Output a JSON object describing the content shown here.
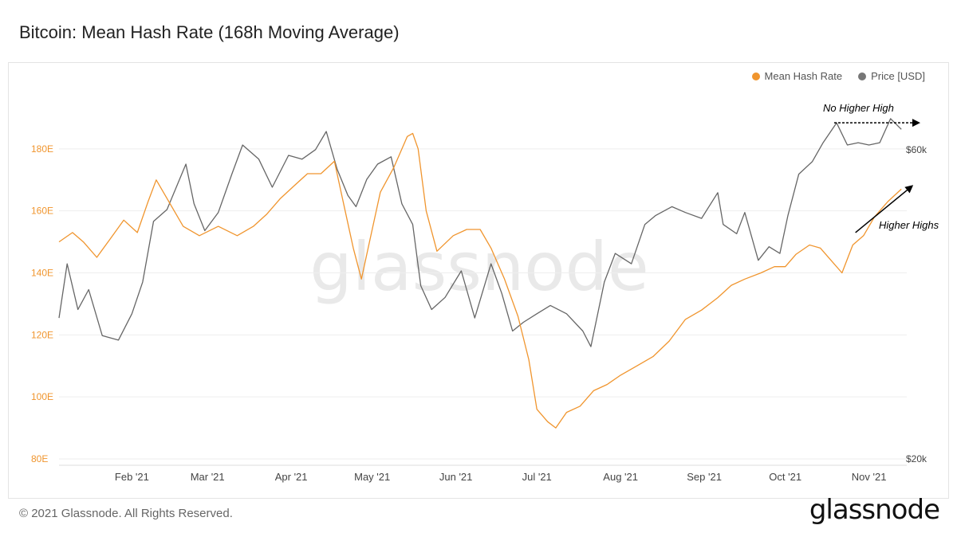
{
  "header": {
    "title": "Bitcoin: Mean Hash Rate (168h Moving Average)"
  },
  "legend": {
    "items": [
      {
        "label": "Mean Hash Rate",
        "color": "#f0952e"
      },
      {
        "label": "Price [USD]",
        "color": "#777777"
      }
    ]
  },
  "watermark": "glassnode",
  "footer": {
    "copyright": "© 2021 Glassnode. All Rights Reserved.",
    "brand": "glassnode"
  },
  "chart_data": {
    "type": "line",
    "title": "Bitcoin: Mean Hash Rate (168h Moving Average)",
    "x_tick_labels": [
      "Feb '21",
      "Mar '21",
      "Apr '21",
      "May '21",
      "Jun '21",
      "Jul '21",
      "Aug '21",
      "Sep '21",
      "Oct '21",
      "Nov '21"
    ],
    "y_left": {
      "ticks": [
        "80E",
        "100E",
        "120E",
        "140E",
        "160E",
        "180E"
      ],
      "range": [
        80,
        200
      ],
      "color": "#f0952e"
    },
    "y_right": {
      "ticks": [
        "$20k",
        "$60k"
      ],
      "scale": "log",
      "range_usd": [
        20000,
        75000
      ]
    },
    "grid": "horizontal",
    "legend_position": "top-right",
    "annotations": [
      {
        "text": "No Higher High",
        "target_series": "Price [USD]",
        "date": "2021-10-20",
        "arrow": "flat"
      },
      {
        "text": "Higher Highs",
        "target_series": "Mean Hash Rate",
        "date": "2021-10-27",
        "arrow": "rising"
      }
    ],
    "series": [
      {
        "name": "Mean Hash Rate",
        "color": "#f0952e",
        "axis": "left",
        "unit": "EH/s",
        "points": [
          [
            "2021-01-05",
            150
          ],
          [
            "2021-01-10",
            153
          ],
          [
            "2021-01-14",
            150
          ],
          [
            "2021-01-19",
            145
          ],
          [
            "2021-01-24",
            151
          ],
          [
            "2021-01-29",
            157
          ],
          [
            "2021-02-03",
            153
          ],
          [
            "2021-02-07",
            163
          ],
          [
            "2021-02-10",
            170
          ],
          [
            "2021-02-14",
            164
          ],
          [
            "2021-02-20",
            155
          ],
          [
            "2021-02-26",
            152
          ],
          [
            "2021-03-05",
            155
          ],
          [
            "2021-03-12",
            152
          ],
          [
            "2021-03-18",
            155
          ],
          [
            "2021-03-23",
            159
          ],
          [
            "2021-03-28",
            164
          ],
          [
            "2021-04-02",
            168
          ],
          [
            "2021-04-07",
            172
          ],
          [
            "2021-04-12",
            172
          ],
          [
            "2021-04-17",
            176
          ],
          [
            "2021-04-21",
            160
          ],
          [
            "2021-04-24",
            148
          ],
          [
            "2021-04-27",
            138
          ],
          [
            "2021-04-30",
            150
          ],
          [
            "2021-05-04",
            166
          ],
          [
            "2021-05-09",
            174
          ],
          [
            "2021-05-14",
            184
          ],
          [
            "2021-05-16",
            185
          ],
          [
            "2021-05-18",
            180
          ],
          [
            "2021-05-21",
            160
          ],
          [
            "2021-05-25",
            147
          ],
          [
            "2021-05-31",
            152
          ],
          [
            "2021-06-05",
            154
          ],
          [
            "2021-06-10",
            154
          ],
          [
            "2021-06-14",
            148
          ],
          [
            "2021-06-19",
            138
          ],
          [
            "2021-06-24",
            126
          ],
          [
            "2021-06-28",
            112
          ],
          [
            "2021-07-01",
            96
          ],
          [
            "2021-07-05",
            92
          ],
          [
            "2021-07-08",
            90
          ],
          [
            "2021-07-12",
            95
          ],
          [
            "2021-07-17",
            97
          ],
          [
            "2021-07-22",
            102
          ],
          [
            "2021-07-27",
            104
          ],
          [
            "2021-08-01",
            107
          ],
          [
            "2021-08-07",
            110
          ],
          [
            "2021-08-13",
            113
          ],
          [
            "2021-08-19",
            118
          ],
          [
            "2021-08-25",
            125
          ],
          [
            "2021-08-31",
            128
          ],
          [
            "2021-09-06",
            132
          ],
          [
            "2021-09-11",
            136
          ],
          [
            "2021-09-16",
            138
          ],
          [
            "2021-09-22",
            140
          ],
          [
            "2021-09-27",
            142
          ],
          [
            "2021-10-01",
            142
          ],
          [
            "2021-10-05",
            146
          ],
          [
            "2021-10-10",
            149
          ],
          [
            "2021-10-14",
            148
          ],
          [
            "2021-10-18",
            144
          ],
          [
            "2021-10-22",
            140
          ],
          [
            "2021-10-26",
            149
          ],
          [
            "2021-10-30",
            152
          ],
          [
            "2021-11-03",
            158
          ],
          [
            "2021-11-08",
            163
          ],
          [
            "2021-11-13",
            167
          ]
        ]
      },
      {
        "name": "Price [USD]",
        "color": "#666666",
        "axis": "right",
        "unit": "USD",
        "points": [
          [
            "2021-01-05",
            33000
          ],
          [
            "2021-01-08",
            40000
          ],
          [
            "2021-01-12",
            34000
          ],
          [
            "2021-01-16",
            36500
          ],
          [
            "2021-01-21",
            31000
          ],
          [
            "2021-01-27",
            30500
          ],
          [
            "2021-02-01",
            33500
          ],
          [
            "2021-02-05",
            37500
          ],
          [
            "2021-02-09",
            46500
          ],
          [
            "2021-02-14",
            48500
          ],
          [
            "2021-02-21",
            57000
          ],
          [
            "2021-02-24",
            49500
          ],
          [
            "2021-02-28",
            45000
          ],
          [
            "2021-03-05",
            48000
          ],
          [
            "2021-03-10",
            55000
          ],
          [
            "2021-03-14",
            61000
          ],
          [
            "2021-03-20",
            58000
          ],
          [
            "2021-03-25",
            52500
          ],
          [
            "2021-03-31",
            58800
          ],
          [
            "2021-04-05",
            58000
          ],
          [
            "2021-04-10",
            60000
          ],
          [
            "2021-04-14",
            64000
          ],
          [
            "2021-04-18",
            56000
          ],
          [
            "2021-04-22",
            51000
          ],
          [
            "2021-04-25",
            49000
          ],
          [
            "2021-04-29",
            54000
          ],
          [
            "2021-05-03",
            57000
          ],
          [
            "2021-05-08",
            58500
          ],
          [
            "2021-05-12",
            49500
          ],
          [
            "2021-05-16",
            46000
          ],
          [
            "2021-05-19",
            37000
          ],
          [
            "2021-05-23",
            34000
          ],
          [
            "2021-05-28",
            35500
          ],
          [
            "2021-06-03",
            39000
          ],
          [
            "2021-06-08",
            33000
          ],
          [
            "2021-06-14",
            40000
          ],
          [
            "2021-06-18",
            36000
          ],
          [
            "2021-06-22",
            31500
          ],
          [
            "2021-06-26",
            32500
          ],
          [
            "2021-07-01",
            33500
          ],
          [
            "2021-07-06",
            34500
          ],
          [
            "2021-07-12",
            33500
          ],
          [
            "2021-07-18",
            31500
          ],
          [
            "2021-07-21",
            29800
          ],
          [
            "2021-07-26",
            37500
          ],
          [
            "2021-07-30",
            41500
          ],
          [
            "2021-08-05",
            40000
          ],
          [
            "2021-08-10",
            46000
          ],
          [
            "2021-08-14",
            47500
          ],
          [
            "2021-08-20",
            49000
          ],
          [
            "2021-08-25",
            48000
          ],
          [
            "2021-08-31",
            47000
          ],
          [
            "2021-09-06",
            51500
          ],
          [
            "2021-09-08",
            46000
          ],
          [
            "2021-09-13",
            44500
          ],
          [
            "2021-09-16",
            48000
          ],
          [
            "2021-09-21",
            40500
          ],
          [
            "2021-09-25",
            42500
          ],
          [
            "2021-09-29",
            41500
          ],
          [
            "2021-10-02",
            47500
          ],
          [
            "2021-10-06",
            55000
          ],
          [
            "2021-10-11",
            57500
          ],
          [
            "2021-10-15",
            61500
          ],
          [
            "2021-10-20",
            66000
          ],
          [
            "2021-10-24",
            61000
          ],
          [
            "2021-10-28",
            61500
          ],
          [
            "2021-11-01",
            61000
          ],
          [
            "2021-11-05",
            61500
          ],
          [
            "2021-11-09",
            67000
          ],
          [
            "2021-11-13",
            64500
          ]
        ]
      }
    ]
  }
}
